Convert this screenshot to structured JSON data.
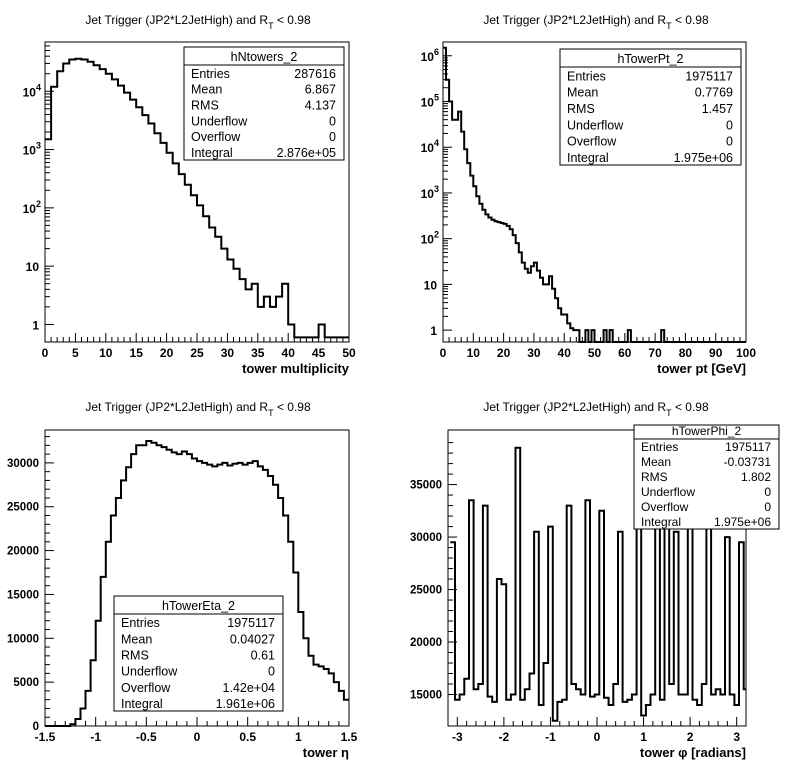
{
  "chart_data": [
    {
      "type": "histogram",
      "title": {
        "main": "Jet Trigger (JP2*L2JetHigh) and R",
        "sub": "T",
        "tail": " < 0.98"
      },
      "xlabel": "tower multiplicity",
      "ylabel": "",
      "xlim": [
        0,
        50
      ],
      "ylim": [
        0.5,
        70000
      ],
      "log_y": true,
      "x_ticks": [
        "0",
        "5",
        "10",
        "15",
        "20",
        "25",
        "30",
        "35",
        "40",
        "45",
        "50"
      ],
      "y_ticks": [
        {
          "base": "1",
          "exp": ""
        },
        {
          "base": "10",
          "exp": ""
        },
        {
          "base": "10",
          "exp": "2"
        },
        {
          "base": "10",
          "exp": "3"
        },
        {
          "base": "10",
          "exp": "4"
        }
      ],
      "bin_width": 1,
      "x": [
        0,
        1,
        2,
        3,
        4,
        5,
        6,
        7,
        8,
        9,
        10,
        11,
        12,
        13,
        14,
        15,
        16,
        17,
        18,
        19,
        20,
        21,
        22,
        23,
        24,
        25,
        26,
        27,
        28,
        29,
        30,
        31,
        32,
        33,
        34,
        35,
        36,
        37,
        38,
        39,
        40,
        41,
        42,
        43,
        44,
        45,
        46,
        47,
        48,
        49
      ],
      "values": [
        1500,
        12000,
        22000,
        30000,
        35000,
        36000,
        35000,
        32000,
        28000,
        24000,
        20000,
        16000,
        12500,
        9500,
        7200,
        5300,
        3900,
        2800,
        1900,
        1300,
        880,
        580,
        380,
        250,
        165,
        110,
        72,
        46,
        32,
        20,
        13,
        9,
        6,
        4,
        5,
        2,
        3,
        2,
        3,
        5,
        1,
        0.6,
        0.6,
        0.6,
        0.6,
        1,
        0.6,
        0.6,
        0.6,
        0.6
      ],
      "stats": {
        "name": "hNtowers_2",
        "rows": [
          [
            "Entries",
            "287616"
          ],
          [
            "Mean",
            "6.867"
          ],
          [
            "RMS",
            "4.137"
          ],
          [
            "Underflow",
            "0"
          ],
          [
            "Overflow",
            "0"
          ],
          [
            "Integral",
            "2.876e+05"
          ]
        ]
      },
      "colors": {
        "line": "#000000",
        "frame": "#000000"
      }
    },
    {
      "type": "histogram",
      "title": {
        "main": "Jet Trigger (JP2*L2JetHigh) and R",
        "sub": "T",
        "tail": " < 0.98"
      },
      "xlabel": "tower pt [GeV]",
      "ylabel": "",
      "xlim": [
        0,
        100
      ],
      "ylim": [
        0.55,
        2000000
      ],
      "log_y": true,
      "x_ticks": [
        "0",
        "10",
        "20",
        "30",
        "40",
        "50",
        "60",
        "70",
        "80",
        "90",
        "100"
      ],
      "y_ticks": [
        {
          "base": "1",
          "exp": ""
        },
        {
          "base": "10",
          "exp": ""
        },
        {
          "base": "10",
          "exp": "2"
        },
        {
          "base": "10",
          "exp": "3"
        },
        {
          "base": "10",
          "exp": "4"
        },
        {
          "base": "10",
          "exp": "5"
        },
        {
          "base": "10",
          "exp": "6"
        }
      ],
      "bin_width": 1,
      "x": [
        0,
        1,
        2,
        3,
        4,
        5,
        6,
        7,
        8,
        9,
        10,
        11,
        12,
        13,
        14,
        15,
        16,
        17,
        18,
        19,
        20,
        21,
        22,
        23,
        24,
        25,
        26,
        27,
        28,
        29,
        30,
        31,
        32,
        33,
        34,
        35,
        36,
        37,
        38,
        39,
        40,
        41,
        42,
        43,
        44,
        45,
        46,
        47,
        48,
        49,
        50,
        51,
        52,
        53,
        54,
        55,
        56,
        57,
        58,
        59,
        60,
        61,
        62,
        63,
        64,
        65,
        66,
        67,
        68,
        69,
        70,
        71,
        72,
        73,
        74,
        75,
        76,
        77,
        78,
        79,
        80,
        81,
        82,
        83,
        84,
        85,
        86,
        87,
        88,
        89,
        90,
        91,
        92,
        93,
        94,
        95,
        96,
        97,
        98,
        99
      ],
      "values": [
        1500000,
        300000,
        100000,
        40000,
        40000,
        60000,
        22000,
        9000,
        4500,
        2400,
        1400,
        850,
        580,
        430,
        340,
        290,
        260,
        240,
        230,
        220,
        210,
        190,
        160,
        120,
        80,
        50,
        30,
        22,
        18,
        25,
        30,
        20,
        14,
        10,
        10,
        15,
        8,
        5,
        3,
        2.2,
        2.2,
        1.4,
        1.1,
        1,
        1,
        0.5,
        0.5,
        1,
        0.5,
        1,
        0.5,
        0.5,
        0.5,
        1,
        0.5,
        1,
        0.5,
        0.5,
        0.5,
        0.5,
        0.5,
        1,
        0.5,
        0.5,
        0.5,
        0.5,
        0.5,
        0.5,
        0.5,
        0.5,
        0.5,
        0.5,
        1,
        0.5,
        0.5,
        0.5,
        0.5,
        0.5,
        0.5,
        0.5,
        0.5,
        0.5,
        0.5,
        0.5,
        0.5,
        0.5,
        0.5,
        0.5,
        0.5,
        0.5,
        0.5,
        0.5,
        0.5,
        0.5,
        0.5,
        0.5,
        0.5,
        0.5,
        0.5,
        0.5
      ],
      "stats": {
        "name": "hTowerPt_2",
        "rows": [
          [
            "Entries",
            "1975117"
          ],
          [
            "Mean",
            "0.7769"
          ],
          [
            "RMS",
            "1.457"
          ],
          [
            "Underflow",
            "0"
          ],
          [
            "Overflow",
            "0"
          ],
          [
            "Integral",
            "1.975e+06"
          ]
        ]
      },
      "colors": {
        "line": "#000000",
        "frame": "#000000"
      }
    },
    {
      "type": "histogram",
      "title": {
        "main": "Jet Trigger (JP2*L2JetHigh) and R",
        "sub": "T",
        "tail": " < 0.98"
      },
      "xlabel": "tower η",
      "ylabel": "",
      "xlim": [
        -1.5,
        1.5
      ],
      "ylim": [
        0,
        33750
      ],
      "log_y": false,
      "x_ticks": [
        "-1.5",
        "-1",
        "-0.5",
        "0",
        "0.5",
        "1",
        "1.5"
      ],
      "y_ticks": [
        "0",
        "5000",
        "10000",
        "15000",
        "20000",
        "25000",
        "30000"
      ],
      "bin_width": 0.05,
      "x": [
        -1.5,
        -1.45,
        -1.4,
        -1.35,
        -1.3,
        -1.25,
        -1.2,
        -1.15,
        -1.1,
        -1.05,
        -1.0,
        -0.95,
        -0.9,
        -0.85,
        -0.8,
        -0.75,
        -0.7,
        -0.65,
        -0.6,
        -0.55,
        -0.5,
        -0.45,
        -0.4,
        -0.35,
        -0.3,
        -0.25,
        -0.2,
        -0.15,
        -0.1,
        -0.05,
        0.0,
        0.05,
        0.1,
        0.15,
        0.2,
        0.25,
        0.3,
        0.35,
        0.4,
        0.45,
        0.5,
        0.55,
        0.6,
        0.65,
        0.7,
        0.75,
        0.8,
        0.85,
        0.9,
        0.95,
        1.0,
        1.05,
        1.1,
        1.15,
        1.2,
        1.25,
        1.3,
        1.35,
        1.4,
        1.45
      ],
      "values": [
        0,
        0,
        0,
        0,
        0,
        200,
        800,
        2000,
        4000,
        7500,
        12000,
        17000,
        21000,
        24000,
        26000,
        28000,
        29500,
        31000,
        32000,
        32000,
        32500,
        32300,
        32000,
        31800,
        31500,
        31200,
        31000,
        31300,
        31000,
        30500,
        30200,
        30000,
        29800,
        29600,
        29800,
        30000,
        29700,
        29900,
        30000,
        29800,
        30000,
        30200,
        29600,
        29200,
        28500,
        27500,
        26000,
        24000,
        21000,
        17500,
        13000,
        10000,
        8000,
        7000,
        6800,
        6500,
        6000,
        5000,
        4000,
        3000
      ],
      "stats": {
        "name": "hTowerEta_2",
        "rows": [
          [
            "Entries",
            "1975117"
          ],
          [
            "Mean",
            "0.04027"
          ],
          [
            "RMS",
            "0.61"
          ],
          [
            "Underflow",
            "0"
          ],
          [
            "Overflow",
            "1.42e+04"
          ],
          [
            "Integral",
            "1.961e+06"
          ]
        ]
      },
      "colors": {
        "line": "#000000",
        "frame": "#000000"
      }
    },
    {
      "type": "histogram",
      "title": {
        "main": "Jet Trigger (JP2*L2JetHigh) and R",
        "sub": "T",
        "tail": " < 0.98"
      },
      "xlabel": "tower φ [radians]",
      "ylabel": "",
      "xlim": [
        -3.2,
        3.2
      ],
      "ylim": [
        12000,
        40200
      ],
      "log_y": false,
      "x_ticks": [
        "-3",
        "-2",
        "-1",
        "0",
        "1",
        "2",
        "3"
      ],
      "y_ticks": [
        "15000",
        "20000",
        "25000",
        "30000",
        "35000"
      ],
      "bin_width": 0.1,
      "x": [
        -3.15,
        -3.05,
        -2.95,
        -2.85,
        -2.75,
        -2.65,
        -2.55,
        -2.45,
        -2.35,
        -2.25,
        -2.15,
        -2.05,
        -1.95,
        -1.85,
        -1.75,
        -1.65,
        -1.55,
        -1.45,
        -1.35,
        -1.25,
        -1.15,
        -1.05,
        -0.95,
        -0.85,
        -0.75,
        -0.65,
        -0.55,
        -0.45,
        -0.35,
        -0.25,
        -0.15,
        -0.05,
        0.05,
        0.15,
        0.25,
        0.35,
        0.45,
        0.55,
        0.65,
        0.75,
        0.85,
        0.95,
        1.05,
        1.15,
        1.25,
        1.35,
        1.45,
        1.55,
        1.65,
        1.75,
        1.85,
        1.95,
        2.05,
        2.15,
        2.25,
        2.35,
        2.45,
        2.55,
        2.65,
        2.75,
        2.85,
        2.95,
        3.05,
        3.15
      ],
      "values": [
        29500,
        14500,
        15000,
        16500,
        33500,
        15500,
        16000,
        33000,
        14800,
        14300,
        26000,
        25500,
        14500,
        15000,
        38500,
        14500,
        15500,
        17000,
        30500,
        14000,
        18000,
        31000,
        12500,
        14300,
        14500,
        33000,
        16000,
        15500,
        15000,
        33500,
        14800,
        15000,
        32500,
        14700,
        14000,
        16000,
        30500,
        14300,
        14500,
        15000,
        32000,
        13000,
        14000,
        15000,
        31000,
        14500,
        31500,
        16000,
        30500,
        15000,
        15000,
        32500,
        14500,
        14000,
        16000,
        31000,
        15000,
        15500,
        15000,
        30000,
        15000,
        14000,
        29500,
        15500
      ],
      "stats": {
        "name": "hTowerPhi_2",
        "rows": [
          [
            "Entries",
            "1975117"
          ],
          [
            "Mean",
            "-0.03731"
          ],
          [
            "RMS",
            "1.802"
          ],
          [
            "Underflow",
            "0"
          ],
          [
            "Overflow",
            "0"
          ],
          [
            "Integral",
            "1.975e+06"
          ]
        ]
      },
      "colors": {
        "line": "#000000",
        "frame": "#000000"
      }
    }
  ]
}
